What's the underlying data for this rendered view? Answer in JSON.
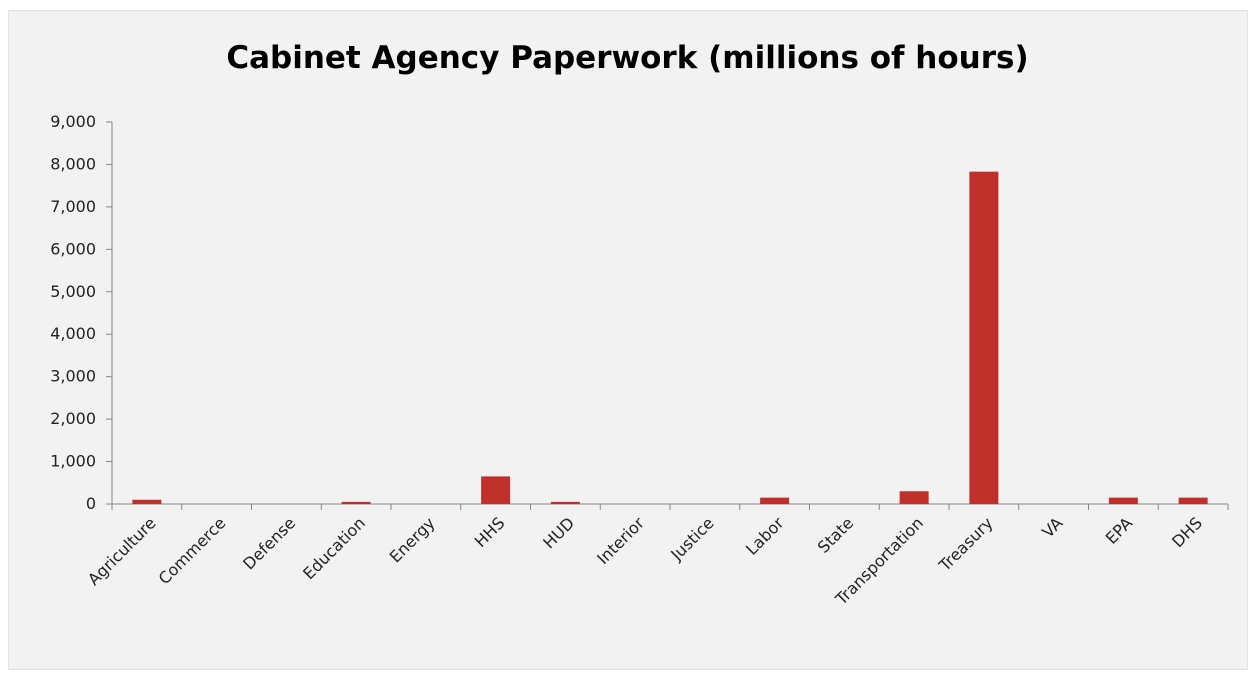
{
  "chart_data": {
    "type": "bar",
    "title": "Cabinet Agency Paperwork (millions of hours)",
    "xlabel": "",
    "ylabel": "",
    "categories": [
      "Agriculture",
      "Commerce",
      "Defense",
      "Education",
      "Energy",
      "HHS",
      "HUD",
      "Interior",
      "Justice",
      "Labor",
      "State",
      "Transportation",
      "Treasury",
      "VA",
      "EPA",
      "DHS"
    ],
    "values": [
      100,
      0,
      0,
      50,
      0,
      650,
      50,
      0,
      0,
      150,
      0,
      300,
      7830,
      0,
      150,
      150
    ],
    "ylim": [
      0,
      9000
    ],
    "yticks": [
      0,
      1000,
      2000,
      3000,
      4000,
      5000,
      6000,
      7000,
      8000,
      9000
    ],
    "ytick_labels": [
      "0",
      "1,000",
      "2,000",
      "3,000",
      "4,000",
      "5,000",
      "6,000",
      "7,000",
      "8,000",
      "9,000"
    ],
    "grid": false,
    "legend": "none",
    "bar_color": "#c0302a"
  }
}
